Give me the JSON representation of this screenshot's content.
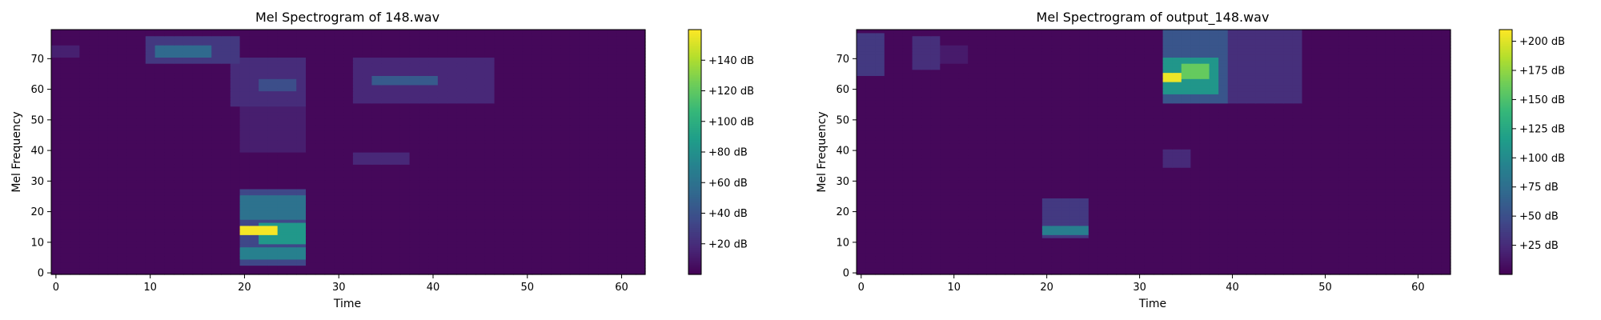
{
  "chart_data": [
    {
      "type": "heatmap",
      "title": "Mel Spectrogram of 148.wav",
      "xlabel": "Time",
      "ylabel": "Mel Frequency",
      "x_ticks": [
        0,
        10,
        20,
        30,
        40,
        50,
        60
      ],
      "y_ticks": [
        0,
        10,
        20,
        30,
        40,
        50,
        60,
        70
      ],
      "xlim": [
        -0.5,
        62.5
      ],
      "ylim": [
        -0.5,
        79.5
      ],
      "n_frames": 63,
      "n_mels": 80,
      "colormap": "viridis",
      "colorbar": {
        "range": [
          0,
          160
        ],
        "ticks": [
          20,
          40,
          60,
          80,
          100,
          120,
          140
        ],
        "tick_labels": [
          "+20 dB",
          "+40 dB",
          "+60 dB",
          "+80 dB",
          "+100 dB",
          "+120 dB",
          "+140 dB"
        ]
      },
      "background_level": 3,
      "regions": [
        {
          "x": [
            0,
            2
          ],
          "y": [
            71,
            74
          ],
          "v": 14
        },
        {
          "x": [
            10,
            19
          ],
          "y": [
            69,
            77
          ],
          "v": 26
        },
        {
          "x": [
            11,
            16
          ],
          "y": [
            71,
            74
          ],
          "v": 55
        },
        {
          "x": [
            19,
            26
          ],
          "y": [
            55,
            70
          ],
          "v": 20
        },
        {
          "x": [
            22,
            25
          ],
          "y": [
            60,
            63
          ],
          "v": 38
        },
        {
          "x": [
            20,
            26
          ],
          "y": [
            40,
            55
          ],
          "v": 13
        },
        {
          "x": [
            20,
            26
          ],
          "y": [
            3,
            27
          ],
          "v": 34
        },
        {
          "x": [
            20,
            26
          ],
          "y": [
            5,
            8
          ],
          "v": 70
        },
        {
          "x": [
            20,
            26
          ],
          "y": [
            18,
            25
          ],
          "v": 60
        },
        {
          "x": [
            22,
            26
          ],
          "y": [
            10,
            16
          ],
          "v": 85
        },
        {
          "x": [
            20,
            23
          ],
          "y": [
            13,
            15
          ],
          "v": 158
        },
        {
          "x": [
            32,
            37
          ],
          "y": [
            36,
            39
          ],
          "v": 18
        },
        {
          "x": [
            32,
            46
          ],
          "y": [
            56,
            70
          ],
          "v": 18
        },
        {
          "x": [
            34,
            40
          ],
          "y": [
            62,
            64
          ],
          "v": 45
        }
      ]
    },
    {
      "type": "heatmap",
      "title": "Mel Spectrogram of output_148.wav",
      "xlabel": "Time",
      "ylabel": "Mel Frequency",
      "x_ticks": [
        0,
        10,
        20,
        30,
        40,
        50,
        60
      ],
      "y_ticks": [
        0,
        10,
        20,
        30,
        40,
        50,
        60,
        70
      ],
      "xlim": [
        -0.5,
        63.5
      ],
      "ylim": [
        -0.5,
        79.5
      ],
      "n_frames": 64,
      "n_mels": 80,
      "colormap": "viridis",
      "colorbar": {
        "range": [
          0,
          210
        ],
        "ticks": [
          25,
          50,
          75,
          100,
          125,
          150,
          175,
          200
        ],
        "tick_labels": [
          "+25 dB",
          "+50 dB",
          "+75 dB",
          "+100 dB",
          "+125 dB",
          "+150 dB",
          "+175 dB",
          "+200 dB"
        ]
      },
      "background_level": 4,
      "regions": [
        {
          "x": [
            0,
            2
          ],
          "y": [
            65,
            78
          ],
          "v": 35
        },
        {
          "x": [
            6,
            8
          ],
          "y": [
            67,
            77
          ],
          "v": 28
        },
        {
          "x": [
            9,
            11
          ],
          "y": [
            69,
            74
          ],
          "v": 15
        },
        {
          "x": [
            20,
            24
          ],
          "y": [
            12,
            24
          ],
          "v": 35
        },
        {
          "x": [
            20,
            24
          ],
          "y": [
            13,
            15
          ],
          "v": 90
        },
        {
          "x": [
            33,
            39
          ],
          "y": [
            56,
            79
          ],
          "v": 55
        },
        {
          "x": [
            33,
            38
          ],
          "y": [
            59,
            70
          ],
          "v": 110
        },
        {
          "x": [
            35,
            37
          ],
          "y": [
            64,
            68
          ],
          "v": 160
        },
        {
          "x": [
            33,
            34
          ],
          "y": [
            63,
            65
          ],
          "v": 205
        },
        {
          "x": [
            39,
            47
          ],
          "y": [
            56,
            79
          ],
          "v": 28
        },
        {
          "x": [
            33,
            35
          ],
          "y": [
            35,
            40
          ],
          "v": 25
        }
      ]
    }
  ]
}
